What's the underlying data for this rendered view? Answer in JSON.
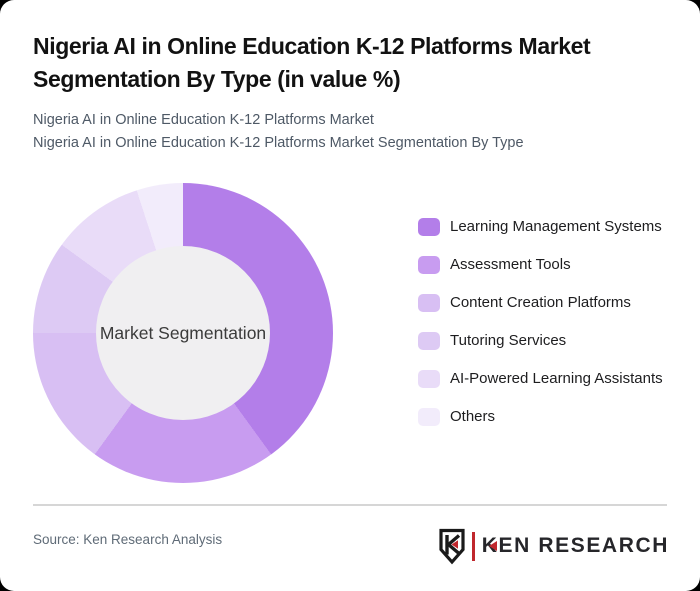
{
  "page": {
    "background_color": "#000000",
    "card_background_color": "#ffffff"
  },
  "header": {
    "title": "Nigeria AI in Online Education K-12 Platforms Market Segmentation By Type (in value %)",
    "subtitle_line1": "Nigeria AI in Online Education K-12 Platforms Market",
    "subtitle_line2": "Nigeria AI in Online Education K-12 Platforms Market Segmentation By Type"
  },
  "chart_data": {
    "type": "pie",
    "variant": "donut",
    "title": "Nigeria AI in Online Education K-12 Platforms Market Segmentation By Type (in value %)",
    "center_label": "Market Segmentation",
    "categories": [
      "Learning Management Systems",
      "Assessment Tools",
      "Content Creation Platforms",
      "Tutoring Services",
      "AI-Powered Learning Assistants",
      "Others"
    ],
    "values": [
      40,
      20,
      15,
      10,
      10,
      5
    ],
    "unit": "% of value",
    "colors": [
      "#b37ee9",
      "#c89cf0",
      "#d8bff3",
      "#ddcaf4",
      "#e9dcf8",
      "#f2ecfb"
    ],
    "start_angle_deg": 0,
    "direction": "clockwise",
    "inner_circle_color": "#f0eff1",
    "legend_position": "right",
    "data_labels": false
  },
  "footer": {
    "source_text": "Source: Ken Research Analysis",
    "logo": {
      "brand": "KEN RESEARCH",
      "accent_color": "#c0272d",
      "icon": "shield-k"
    }
  }
}
